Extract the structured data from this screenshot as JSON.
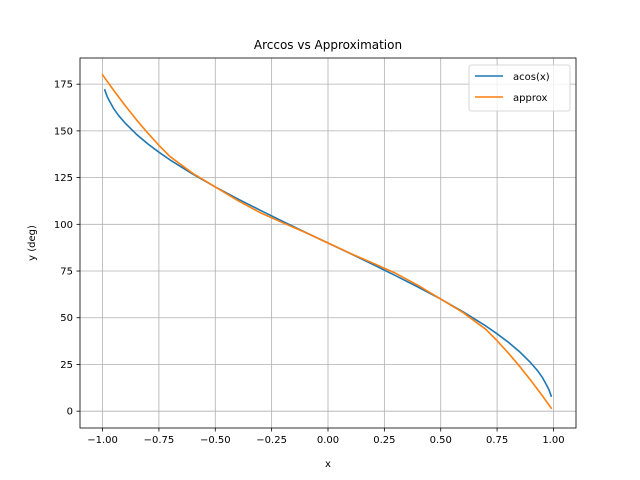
{
  "chart_data": {
    "type": "line",
    "title": "Arccos vs Approximation",
    "xlabel": "x",
    "ylabel": "y (deg)",
    "xlim": [
      -1.1,
      1.1
    ],
    "ylim": [
      -9,
      189
    ],
    "grid": true,
    "legend": "top-right",
    "xticks": [
      -1.0,
      -0.75,
      -0.5,
      -0.25,
      0.0,
      0.25,
      0.5,
      0.75,
      1.0
    ],
    "xtick_labels": [
      "−1.00",
      "−0.75",
      "−0.50",
      "−0.25",
      "0.00",
      "0.25",
      "0.50",
      "0.75",
      "1.00"
    ],
    "yticks": [
      0,
      25,
      50,
      75,
      100,
      125,
      150,
      175
    ],
    "ytick_labels": [
      "0",
      "25",
      "50",
      "75",
      "100",
      "125",
      "150",
      "175"
    ],
    "series": [
      {
        "name": "acos(x)",
        "color": "#1f77b4",
        "x": [
          -0.99,
          -0.98,
          -0.97,
          -0.95,
          -0.93,
          -0.9,
          -0.85,
          -0.8,
          -0.75,
          -0.7,
          -0.6,
          -0.5,
          -0.4,
          -0.3,
          -0.2,
          -0.1,
          0.0,
          0.1,
          0.2,
          0.3,
          0.4,
          0.5,
          0.6,
          0.7,
          0.75,
          0.8,
          0.85,
          0.9,
          0.93,
          0.95,
          0.97,
          0.98,
          0.99
        ],
        "y": [
          171.9,
          168.5,
          166.1,
          161.8,
          158.4,
          154.2,
          148.2,
          143.1,
          138.6,
          134.4,
          126.9,
          120.0,
          113.6,
          107.5,
          101.5,
          95.7,
          90.0,
          84.3,
          78.5,
          72.5,
          66.4,
          60.0,
          53.1,
          45.6,
          41.4,
          36.9,
          31.8,
          25.8,
          21.6,
          18.2,
          13.9,
          11.5,
          8.1
        ]
      },
      {
        "name": "approx",
        "color": "#ff7f0e",
        "x": [
          -1.0,
          -0.95,
          -0.9,
          -0.85,
          -0.8,
          -0.75,
          -0.7,
          -0.6,
          -0.5,
          -0.4,
          -0.3,
          -0.2,
          -0.1,
          0.0,
          0.1,
          0.2,
          0.3,
          0.4,
          0.5,
          0.6,
          0.7,
          0.75,
          0.8,
          0.85,
          0.9,
          0.95,
          0.99
        ],
        "y": [
          180.0,
          171.6,
          163.6,
          156.0,
          148.9,
          142.3,
          136.2,
          127.3,
          120.0,
          112.7,
          106.2,
          100.8,
          95.6,
          90.0,
          84.4,
          79.2,
          73.8,
          67.3,
          60.0,
          52.7,
          43.8,
          37.7,
          31.1,
          24.0,
          16.4,
          8.4,
          1.6
        ]
      }
    ]
  }
}
